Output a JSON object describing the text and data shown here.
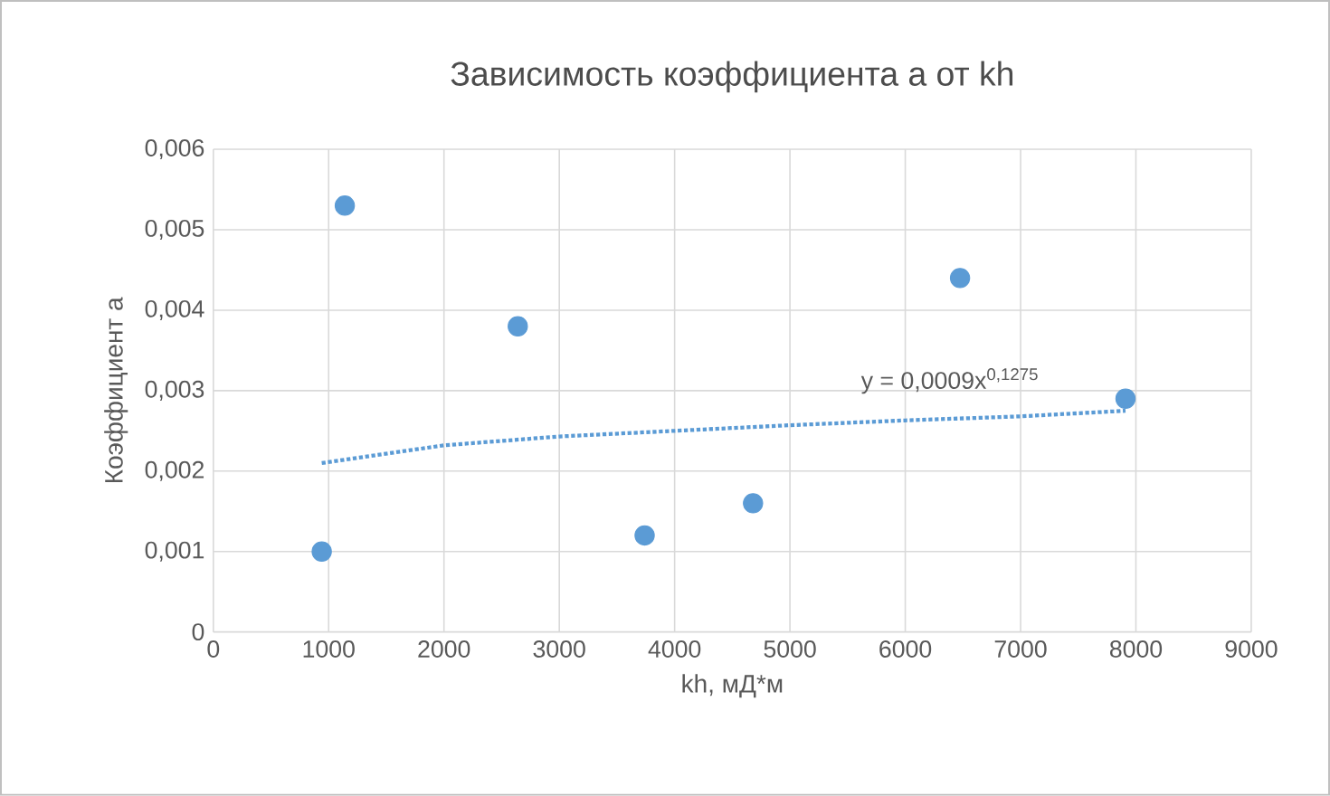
{
  "chart_data": {
    "type": "scatter",
    "title": "Зависимость коэффициента а от kh",
    "xlabel": "kh, мД*м",
    "ylabel": "Коэффициент а",
    "xlim": [
      0,
      9000
    ],
    "xticks": [
      0,
      1000,
      2000,
      3000,
      4000,
      5000,
      6000,
      7000,
      8000,
      9000
    ],
    "ylim": [
      0,
      0.006
    ],
    "yticks": [
      0,
      {
        "value": 0.001,
        "label": "0,001"
      },
      {
        "value": 0.002,
        "label": "0,002"
      },
      {
        "value": 0.003,
        "label": "0,003"
      },
      {
        "value": 0.004,
        "label": "0,004"
      },
      {
        "value": 0.005,
        "label": "0,005"
      },
      {
        "value": 0.006,
        "label": "0,006"
      }
    ],
    "grid": true,
    "series": [
      {
        "color": "#5b9bd5",
        "marker": "circle",
        "x": [
          940,
          1140,
          2640,
          3740,
          4680,
          6475,
          7910
        ],
        "values": [
          0.001,
          0.0053,
          0.0038,
          0.0012,
          0.0016,
          0.0044,
          0.0029
        ]
      },
      {
        "type": "line",
        "color": "#5b9bd5",
        "marker": "none",
        "line_style": "dotted",
        "x": [
          940,
          2000,
          3000,
          4000,
          5000,
          6000,
          7000,
          7910
        ],
        "values": [
          0.0021,
          0.00232,
          0.00243,
          0.0025,
          0.00257,
          0.00263,
          0.00268,
          0.00275
        ]
      }
    ],
    "annotations": [
      "y = 0,0009x$^{0,1275}$"
    ]
  }
}
